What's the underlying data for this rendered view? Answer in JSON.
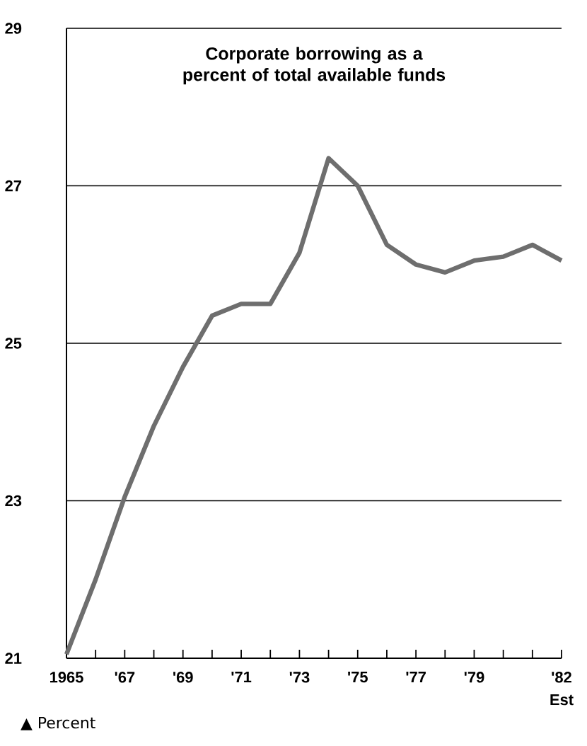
{
  "chart_data": {
    "type": "line",
    "title": "Corporate borrowing as a percent of total available funds",
    "ylabel": "▲ Percent",
    "annotations": [
      "Est"
    ],
    "x": [
      1965,
      1966,
      1967,
      1968,
      1969,
      1970,
      1971,
      1972,
      1973,
      1974,
      1975,
      1976,
      1977,
      1978,
      1979,
      1980,
      1981,
      1982
    ],
    "values": [
      21.05,
      22.0,
      23.05,
      23.95,
      24.7,
      25.35,
      25.5,
      25.5,
      26.15,
      27.35,
      27.0,
      26.25,
      26.0,
      25.9,
      26.05,
      26.1,
      26.25,
      26.05
    ],
    "color": "#6e6e6e",
    "grid": "y",
    "xlim": [
      1965,
      1982
    ],
    "ylim": [
      21,
      29
    ],
    "xticks": [
      {
        "value": 1965,
        "label": "1965"
      },
      {
        "value": 1966,
        "label": null
      },
      {
        "value": 1967,
        "label": "'67"
      },
      {
        "value": 1968,
        "label": null
      },
      {
        "value": 1969,
        "label": "'69"
      },
      {
        "value": 1970,
        "label": null
      },
      {
        "value": 1971,
        "label": "'71"
      },
      {
        "value": 1972,
        "label": null
      },
      {
        "value": 1973,
        "label": "'73"
      },
      {
        "value": 1974,
        "label": null
      },
      {
        "value": 1975,
        "label": "'75"
      },
      {
        "value": 1976,
        "label": null
      },
      {
        "value": 1977,
        "label": "'77"
      },
      {
        "value": 1978,
        "label": null
      },
      {
        "value": 1979,
        "label": "'79"
      },
      {
        "value": 1980,
        "label": null
      },
      {
        "value": 1981,
        "label": null
      },
      {
        "value": 1982,
        "label": "'82"
      }
    ],
    "yticks": [
      21,
      23,
      25,
      27,
      29
    ]
  }
}
